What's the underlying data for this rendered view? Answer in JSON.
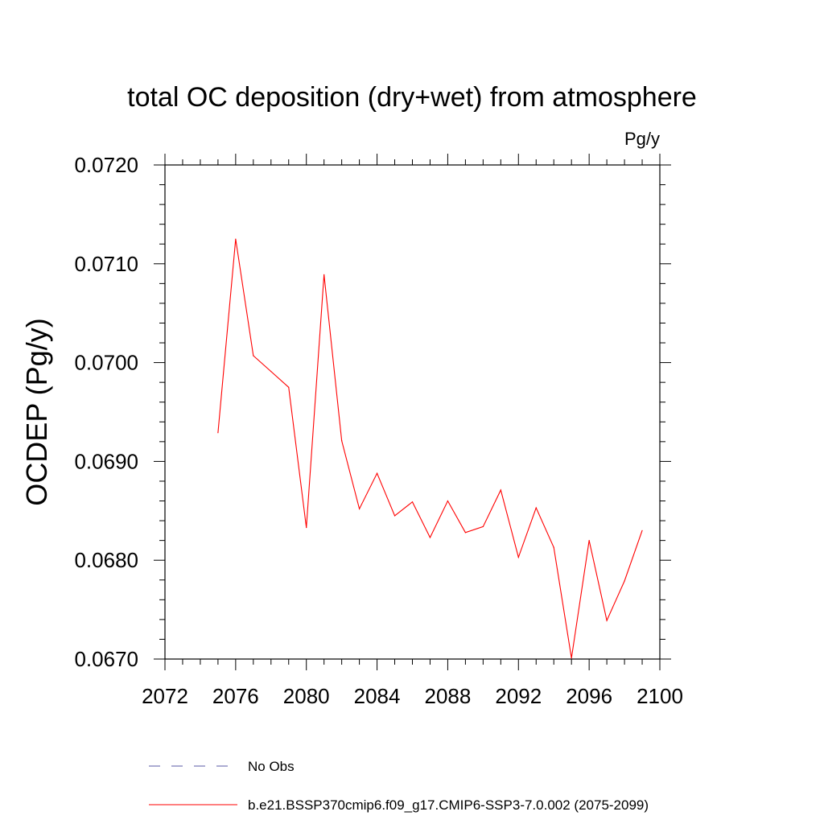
{
  "chart_data": {
    "type": "line",
    "title": "total OC deposition (dry+wet) from atmosphere",
    "units": "Pg/y",
    "ylabel": "OCDEP  (Pg/y)",
    "xlabel": "",
    "xlim": [
      2072,
      2100
    ],
    "ylim": [
      0.067,
      0.072
    ],
    "xticks": [
      2072,
      2076,
      2080,
      2084,
      2088,
      2092,
      2096,
      2100
    ],
    "xtick_labels": [
      "2072",
      "2076",
      "2080",
      "2084",
      "2088",
      "2092",
      "2096",
      "2100"
    ],
    "yticks": [
      0.067,
      0.068,
      0.069,
      0.07,
      0.071,
      0.072
    ],
    "ytick_labels": [
      "0.0670",
      "0.0680",
      "0.0690",
      "0.0700",
      "0.0710",
      "0.0720"
    ],
    "series": [
      {
        "name": "b.e21.BSSP370cmip6.f09_g17.CMIP6-SSP3-7.0.002 (2075-2099)",
        "color": "#ff0000",
        "x": [
          2075,
          2076,
          2077,
          2078,
          2079,
          2080,
          2081,
          2082,
          2083,
          2084,
          2085,
          2086,
          2087,
          2088,
          2089,
          2090,
          2091,
          2092,
          2093,
          2094,
          2095,
          2096,
          2097,
          2098,
          2099
        ],
        "values": [
          0.06929,
          0.07125,
          0.07007,
          0.06991,
          0.06975,
          0.06833,
          0.07089,
          0.06921,
          0.06852,
          0.06888,
          0.06845,
          0.06859,
          0.06823,
          0.0686,
          0.06828,
          0.06834,
          0.06871,
          0.06803,
          0.06853,
          0.06813,
          0.06701,
          0.0682,
          0.06739,
          0.06779,
          0.0683
        ]
      }
    ],
    "legend": [
      {
        "label": "No Obs",
        "color": "#5a5aa6",
        "style": "dashed"
      },
      {
        "label": "b.e21.BSSP370cmip6.f09_g17.CMIP6-SSP3-7.0.002 (2075-2099)",
        "color": "#ff0000",
        "style": "solid"
      }
    ],
    "legend_position": "bottom"
  }
}
